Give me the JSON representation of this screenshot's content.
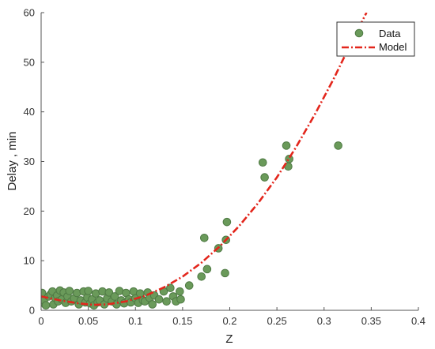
{
  "chart_data": {
    "type": "scatter",
    "title": "",
    "xlabel": "Z",
    "ylabel": "Delay , min",
    "xlim": [
      0,
      0.4
    ],
    "ylim": [
      0,
      60
    ],
    "xticks": [
      0,
      0.05,
      0.1,
      0.15,
      0.2,
      0.25,
      0.3,
      0.35,
      0.4
    ],
    "yticks": [
      0,
      10,
      20,
      30,
      40,
      50,
      60
    ],
    "xtick_labels": [
      "0",
      "0.05",
      "0.1",
      "0.15",
      "0.2",
      "0.25",
      "0.3",
      "0.35",
      "0.4"
    ],
    "ytick_labels": [
      "0",
      "10",
      "20",
      "30",
      "40",
      "50",
      "60"
    ],
    "grid": false,
    "legend": {
      "position": "top-right",
      "entries": [
        "Data",
        "Model"
      ]
    },
    "colors": {
      "data": "#6a9a5a",
      "data_edge": "#4f7a44",
      "model": "#e3261c"
    },
    "series": [
      {
        "name": "Data",
        "kind": "scatter",
        "points": [
          [
            0.001,
            3.5
          ],
          [
            0.002,
            1.5
          ],
          [
            0.003,
            2.0
          ],
          [
            0.005,
            1.0
          ],
          [
            0.008,
            2.8
          ],
          [
            0.01,
            3.2
          ],
          [
            0.012,
            3.8
          ],
          [
            0.013,
            1.2
          ],
          [
            0.015,
            2.5
          ],
          [
            0.017,
            3.0
          ],
          [
            0.018,
            1.8
          ],
          [
            0.02,
            4.0
          ],
          [
            0.022,
            2.2
          ],
          [
            0.024,
            3.6
          ],
          [
            0.026,
            1.5
          ],
          [
            0.028,
            2.8
          ],
          [
            0.03,
            3.9
          ],
          [
            0.032,
            1.8
          ],
          [
            0.035,
            2.4
          ],
          [
            0.038,
            3.5
          ],
          [
            0.04,
            1.2
          ],
          [
            0.042,
            2.0
          ],
          [
            0.045,
            3.8
          ],
          [
            0.047,
            1.6
          ],
          [
            0.049,
            2.6
          ],
          [
            0.05,
            3.9
          ],
          [
            0.052,
            1.4
          ],
          [
            0.054,
            2.2
          ],
          [
            0.056,
            1.0
          ],
          [
            0.058,
            3.4
          ],
          [
            0.06,
            1.6
          ],
          [
            0.062,
            2.0
          ],
          [
            0.065,
            3.8
          ],
          [
            0.067,
            1.2
          ],
          [
            0.07,
            2.4
          ],
          [
            0.072,
            3.6
          ],
          [
            0.075,
            1.8
          ],
          [
            0.078,
            2.8
          ],
          [
            0.08,
            1.2
          ],
          [
            0.083,
            3.9
          ],
          [
            0.085,
            2.0
          ],
          [
            0.088,
            1.4
          ],
          [
            0.09,
            3.5
          ],
          [
            0.093,
            2.2
          ],
          [
            0.095,
            1.6
          ],
          [
            0.098,
            3.8
          ],
          [
            0.1,
            2.4
          ],
          [
            0.103,
            1.5
          ],
          [
            0.105,
            3.4
          ],
          [
            0.108,
            2.0
          ],
          [
            0.11,
            1.8
          ],
          [
            0.113,
            3.6
          ],
          [
            0.115,
            2.5
          ],
          [
            0.118,
            1.2
          ],
          [
            0.12,
            3.0
          ],
          [
            0.125,
            2.2
          ],
          [
            0.13,
            3.8
          ],
          [
            0.133,
            1.8
          ],
          [
            0.137,
            4.5
          ],
          [
            0.14,
            2.8
          ],
          [
            0.143,
            1.8
          ],
          [
            0.147,
            3.8
          ],
          [
            0.148,
            2.2
          ],
          [
            0.157,
            5.0
          ],
          [
            0.17,
            6.8
          ],
          [
            0.173,
            14.6
          ],
          [
            0.176,
            8.3
          ],
          [
            0.188,
            12.5
          ],
          [
            0.195,
            7.5
          ],
          [
            0.196,
            14.2
          ],
          [
            0.197,
            17.8
          ],
          [
            0.235,
            29.8
          ],
          [
            0.237,
            26.8
          ],
          [
            0.26,
            33.2
          ],
          [
            0.262,
            29.0
          ],
          [
            0.263,
            30.5
          ],
          [
            0.315,
            33.2
          ]
        ]
      },
      {
        "name": "Model",
        "kind": "line",
        "style": "dash-dot",
        "points": [
          [
            0.0,
            2.8
          ],
          [
            0.02,
            2.0
          ],
          [
            0.04,
            1.4
          ],
          [
            0.055,
            1.1
          ],
          [
            0.07,
            1.2
          ],
          [
            0.09,
            1.8
          ],
          [
            0.11,
            2.9
          ],
          [
            0.13,
            4.6
          ],
          [
            0.15,
            6.8
          ],
          [
            0.17,
            9.6
          ],
          [
            0.19,
            13.0
          ],
          [
            0.21,
            17.0
          ],
          [
            0.23,
            21.6
          ],
          [
            0.25,
            26.8
          ],
          [
            0.27,
            32.8
          ],
          [
            0.29,
            39.4
          ],
          [
            0.31,
            46.6
          ],
          [
            0.33,
            54.4
          ],
          [
            0.345,
            60.0
          ]
        ]
      }
    ]
  }
}
